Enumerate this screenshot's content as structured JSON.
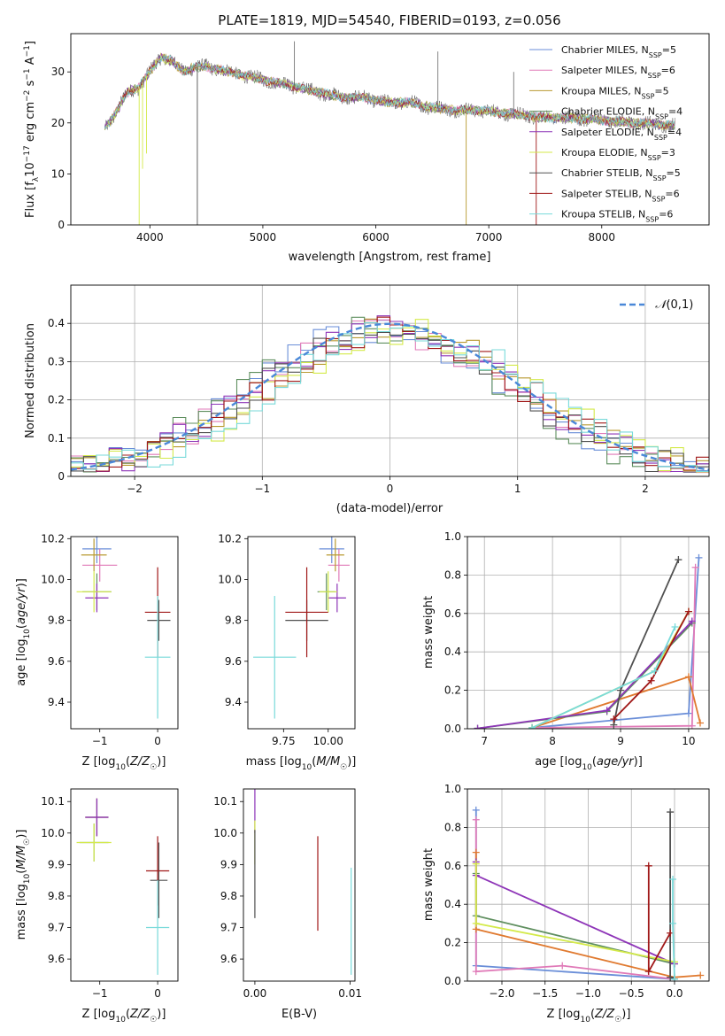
{
  "figure_title": "PLATE=1819, MJD=54540, FIBERID=0193, z=0.056",
  "colors": {
    "chabrier_miles": "#6a8ed8",
    "salpeter_miles": "#e07ab8",
    "kroupa_miles": "#b89a30",
    "chabrier_elodie": "#5f8f5f",
    "salpeter_elodie": "#8e35b8",
    "kroupa_elodie": "#d4ea4a",
    "chabrier_stelib": "#505050",
    "salpeter_stelib": "#a01818",
    "kroupa_stelib": "#78dada",
    "orange": "#e07a30"
  },
  "chart_data": [
    {
      "id": "spectrum",
      "type": "line",
      "xlabel": "wavelength [Angstrom, rest frame]",
      "ylabel": "Flux [fλ10^-17 erg cm^-2 s^-1 A^-1]",
      "xlim": [
        3300,
        8950
      ],
      "ylim": [
        0,
        37.5
      ],
      "xticks": [
        4000,
        5000,
        6000,
        7000,
        8000
      ],
      "yticks": [
        0,
        10,
        20,
        30
      ],
      "legend_position": "upper-right",
      "legend": [
        "Chabrier MILES, N_SSP=5",
        "Salpeter MILES, N_SSP=6",
        "Kroupa MILES, N_SSP=5",
        "Chabrier ELODIE, N_SSP=4",
        "Salpeter ELODIE, N_SSP=4",
        "Kroupa ELODIE, N_SSP=3",
        "Chabrier STELIB, N_SSP=5",
        "Salpeter STELIB, N_SSP=6",
        "Kroupa STELIB, N_SSP=6"
      ],
      "continuum": {
        "x": [
          3600,
          3700,
          3800,
          3900,
          4000,
          4100,
          4200,
          4300,
          4400,
          4500,
          4700,
          4900,
          5100,
          5300,
          5500,
          5700,
          5900,
          6100,
          6300,
          6500,
          6700,
          6900,
          7100,
          7300,
          7500,
          7700,
          8000,
          8300,
          8650
        ],
        "y": [
          19,
          22,
          26,
          27,
          30,
          33,
          32,
          30,
          31,
          31,
          30,
          29,
          28,
          27,
          26,
          25,
          25,
          24,
          24,
          23,
          22.5,
          22.5,
          22,
          21.5,
          21,
          21,
          20.5,
          20,
          19.5
        ]
      },
      "dips": [
        {
          "x": 3905,
          "y": 0,
          "series": "kroupa_elodie"
        },
        {
          "x": 3935,
          "y": 11,
          "series": "kroupa_elodie"
        },
        {
          "x": 3970,
          "y": 14,
          "series": "kroupa_elodie"
        },
        {
          "x": 4420,
          "y": 0,
          "series": "chabrier_stelib"
        },
        {
          "x": 6800,
          "y": 0,
          "series": "kroupa_miles"
        },
        {
          "x": 7420,
          "y": 0,
          "series": "salpeter_stelib"
        }
      ],
      "spikes": [
        {
          "x": 5280,
          "y": 36,
          "series": "chabrier_stelib"
        },
        {
          "x": 6550,
          "y": 34,
          "series": "chabrier_stelib"
        },
        {
          "x": 7220,
          "y": 30,
          "series": "chabrier_stelib"
        }
      ]
    },
    {
      "id": "residual-histogram",
      "type": "line",
      "step": true,
      "xlabel": "(data-model)/error",
      "ylabel": "Normed distribution",
      "xlim": [
        -2.5,
        2.5
      ],
      "ylim": [
        0,
        0.5
      ],
      "xticks": [
        -2,
        -1,
        0,
        1,
        2
      ],
      "yticks": [
        0.0,
        0.1,
        0.2,
        0.3,
        0.4
      ],
      "grid": true,
      "legend_position": "upper-right",
      "legend": [
        "𝒩(0,1)"
      ],
      "reference_curve": {
        "name": "𝒩(0,1)",
        "mu": 0,
        "sigma": 1,
        "style": "dashed"
      }
    },
    {
      "id": "age-vs-Z",
      "type": "scatter",
      "error_bars": true,
      "xlabel": "Z [log10(Z/Z☉)]",
      "ylabel": "age [log10(age/yr)]",
      "xlim": [
        -1.5,
        0.35
      ],
      "ylim": [
        9.27,
        10.21
      ],
      "xticks": [
        -1,
        0
      ],
      "yticks": [
        9.4,
        9.6,
        9.8,
        10.0,
        10.2
      ],
      "points": [
        {
          "series": "chabrier_miles",
          "x": -1.05,
          "y": 10.15,
          "xe": 0.25,
          "ye": 0.07
        },
        {
          "series": "salpeter_miles",
          "x": -1.0,
          "y": 10.07,
          "xe": 0.3,
          "ye": 0.08
        },
        {
          "series": "kroupa_miles",
          "x": -1.1,
          "y": 10.12,
          "xe": 0.22,
          "ye": 0.08
        },
        {
          "series": "chabrier_elodie",
          "x": -1.05,
          "y": 9.94,
          "xe": 0.25,
          "ye": 0.09
        },
        {
          "series": "salpeter_elodie",
          "x": -1.05,
          "y": 9.91,
          "xe": 0.2,
          "ye": 0.07
        },
        {
          "series": "kroupa_elodie",
          "x": -1.1,
          "y": 9.94,
          "xe": 0.3,
          "ye": 0.1
        },
        {
          "series": "chabrier_stelib",
          "x": 0.02,
          "y": 9.8,
          "xe": 0.2,
          "ye": 0.1
        },
        {
          "series": "salpeter_stelib",
          "x": 0.0,
          "y": 9.84,
          "xe": 0.22,
          "ye": 0.22
        },
        {
          "series": "kroupa_stelib",
          "x": 0.0,
          "y": 9.62,
          "xe": 0.22,
          "ye": 0.3
        }
      ]
    },
    {
      "id": "age-vs-mass",
      "type": "scatter",
      "error_bars": true,
      "xlabel": "mass [log10(M/M☉)]",
      "ylabel": "",
      "xlim": [
        9.55,
        10.15
      ],
      "ylim": [
        9.27,
        10.21
      ],
      "xticks": [
        9.75,
        10.0
      ],
      "yticks": [
        9.4,
        9.6,
        9.8,
        10.0,
        10.2
      ],
      "points": [
        {
          "series": "chabrier_miles",
          "x": 10.02,
          "y": 10.15,
          "xe": 0.07,
          "ye": 0.07
        },
        {
          "series": "salpeter_miles",
          "x": 10.06,
          "y": 10.07,
          "xe": 0.06,
          "ye": 0.08
        },
        {
          "series": "kroupa_miles",
          "x": 10.04,
          "y": 10.12,
          "xe": 0.05,
          "ye": 0.08
        },
        {
          "series": "chabrier_elodie",
          "x": 9.99,
          "y": 9.94,
          "xe": 0.05,
          "ye": 0.09
        },
        {
          "series": "salpeter_elodie",
          "x": 10.05,
          "y": 9.91,
          "xe": 0.05,
          "ye": 0.07
        },
        {
          "series": "kroupa_elodie",
          "x": 10.0,
          "y": 9.94,
          "xe": 0.05,
          "ye": 0.1
        },
        {
          "series": "chabrier_stelib",
          "x": 9.88,
          "y": 9.8,
          "xe": 0.12,
          "ye": 0.1
        },
        {
          "series": "salpeter_stelib",
          "x": 9.88,
          "y": 9.84,
          "xe": 0.12,
          "ye": 0.22
        },
        {
          "series": "kroupa_stelib",
          "x": 9.7,
          "y": 9.62,
          "xe": 0.12,
          "ye": 0.3
        }
      ]
    },
    {
      "id": "massweight-vs-age",
      "type": "line",
      "xlabel": "age [log10(age/yr)]",
      "ylabel": "mass weight",
      "xlim": [
        6.75,
        10.3
      ],
      "ylim": [
        0,
        1.0
      ],
      "xticks": [
        7,
        8,
        9,
        10
      ],
      "yticks": [
        0.0,
        0.2,
        0.4,
        0.6,
        0.8,
        1.0
      ],
      "grid": true,
      "series": [
        {
          "name": "chabrier_miles",
          "x": [
            7.7,
            10.0,
            10.15
          ],
          "y": [
            0.005,
            0.08,
            0.89
          ]
        },
        {
          "name": "salpeter_miles",
          "x": [
            7.7,
            10.05,
            10.1
          ],
          "y": [
            0.005,
            0.015,
            0.84
          ]
        },
        {
          "name": "orange",
          "x": [
            7.7,
            10.0,
            10.17
          ],
          "y": [
            0.005,
            0.27,
            0.03
          ]
        },
        {
          "name": "chabrier_elodie",
          "x": [
            6.9,
            8.8,
            10.05
          ],
          "y": [
            0.002,
            0.09,
            0.55
          ]
        },
        {
          "name": "salpeter_elodie",
          "x": [
            6.9,
            8.8,
            10.05
          ],
          "y": [
            0.002,
            0.095,
            0.56
          ]
        },
        {
          "name": "kroupa_elodie",
          "x": [
            7.7,
            9.5,
            10.0
          ],
          "y": [
            0.005,
            0.3,
            0.61
          ]
        },
        {
          "name": "chabrier_stelib",
          "x": [
            8.9,
            9.0,
            9.85
          ],
          "y": [
            0.02,
            0.2,
            0.88
          ]
        },
        {
          "name": "salpeter_stelib",
          "x": [
            8.9,
            9.45,
            10.0
          ],
          "y": [
            0.05,
            0.25,
            0.61
          ]
        },
        {
          "name": "kroupa_stelib",
          "x": [
            7.7,
            9.5,
            9.8
          ],
          "y": [
            0.005,
            0.3,
            0.53
          ]
        }
      ]
    },
    {
      "id": "mass-vs-Z",
      "type": "scatter",
      "error_bars": true,
      "xlabel": "Z [log10(Z/Z☉)]",
      "ylabel": "mass [log10(M/M☉)]",
      "xlim": [
        -1.5,
        0.35
      ],
      "ylim": [
        9.53,
        10.14
      ],
      "xticks": [
        -1,
        0
      ],
      "yticks": [
        9.6,
        9.7,
        9.8,
        9.9,
        10.0,
        10.1
      ],
      "points": [
        {
          "series": "chabrier_miles",
          "x": -1.05,
          "y": 10.05,
          "xe": 0.2,
          "ye": 0.06
        },
        {
          "series": "salpeter_miles",
          "x": -1.05,
          "y": 10.05,
          "xe": 0.2,
          "ye": 0.06
        },
        {
          "series": "kroupa_miles",
          "x": -1.05,
          "y": 10.05,
          "xe": 0.2,
          "ye": 0.06
        },
        {
          "series": "chabrier_elodie",
          "x": -1.1,
          "y": 9.97,
          "xe": 0.25,
          "ye": 0.06
        },
        {
          "series": "salpeter_elodie",
          "x": -1.05,
          "y": 10.05,
          "xe": 0.2,
          "ye": 0.06
        },
        {
          "series": "kroupa_elodie",
          "x": -1.1,
          "y": 9.97,
          "xe": 0.3,
          "ye": 0.06
        },
        {
          "series": "chabrier_stelib",
          "x": 0.02,
          "y": 9.85,
          "xe": 0.15,
          "ye": 0.12
        },
        {
          "series": "salpeter_stelib",
          "x": 0.0,
          "y": 9.88,
          "xe": 0.2,
          "ye": 0.11
        },
        {
          "series": "kroupa_stelib",
          "x": 0.0,
          "y": 9.7,
          "xe": 0.2,
          "ye": 0.15
        }
      ]
    },
    {
      "id": "mass-vs-ebv",
      "type": "scatter",
      "error_bars": true,
      "xlabel": "E(B-V)",
      "ylabel": "",
      "xlim": [
        -0.0012,
        0.0105
      ],
      "ylim": [
        9.53,
        10.14
      ],
      "xticks": [
        0.0,
        0.01
      ],
      "xtick_labels": [
        "0.00",
        "0.01"
      ],
      "yticks": [
        9.6,
        9.7,
        9.8,
        9.9,
        10.0,
        10.1
      ],
      "points": [
        {
          "series": "salpeter_elodie",
          "x": 0.0,
          "y": 10.07,
          "xe": 0,
          "ye": 0.07
        },
        {
          "series": "kroupa_elodie",
          "x": 0.0,
          "y": 9.97,
          "xe": 0,
          "ye": 0.07
        },
        {
          "series": "chabrier_stelib",
          "x": 0.0,
          "y": 9.87,
          "xe": 0,
          "ye": 0.14
        },
        {
          "series": "salpeter_stelib",
          "x": 0.0066,
          "y": 9.84,
          "xe": 0,
          "ye": 0.15
        },
        {
          "series": "kroupa_stelib",
          "x": 0.0101,
          "y": 9.72,
          "xe": 0,
          "ye": 0.17
        }
      ]
    },
    {
      "id": "massweight-vs-Z",
      "type": "line",
      "xlabel": "Z [log10(Z/Z☉)]",
      "ylabel": "mass weight",
      "xlim": [
        -2.4,
        0.4
      ],
      "ylim": [
        0,
        1.0
      ],
      "xticks": [
        -2.0,
        -1.5,
        -1.0,
        -0.5,
        0.0
      ],
      "yticks": [
        0.0,
        0.2,
        0.4,
        0.6,
        0.8,
        1.0
      ],
      "grid": true,
      "series": [
        {
          "name": "chabrier_miles",
          "x": [
            -2.3,
            -2.3,
            0.0
          ],
          "y": [
            0.89,
            0.08,
            0.01
          ]
        },
        {
          "name": "salpeter_miles",
          "x": [
            -2.3,
            -2.3,
            -1.3,
            0.0
          ],
          "y": [
            0.84,
            0.05,
            0.08,
            0.01
          ]
        },
        {
          "name": "orange",
          "x": [
            -2.3,
            -2.3,
            0.0,
            0.3
          ],
          "y": [
            0.67,
            0.27,
            0.02,
            0.03
          ]
        },
        {
          "name": "chabrier_elodie",
          "x": [
            -2.3,
            -2.3,
            0.0
          ],
          "y": [
            0.56,
            0.34,
            0.09
          ]
        },
        {
          "name": "salpeter_elodie",
          "x": [
            -2.3,
            -2.3,
            0.0
          ],
          "y": [
            0.62,
            0.55,
            0.09
          ]
        },
        {
          "name": "kroupa_elodie",
          "x": [
            -2.3,
            -2.3,
            0.0
          ],
          "y": [
            0.61,
            0.3,
            0.1
          ]
        },
        {
          "name": "chabrier_stelib",
          "x": [
            -0.05,
            -0.05,
            0.0
          ],
          "y": [
            0.88,
            0.02,
            0.01
          ]
        },
        {
          "name": "salpeter_stelib",
          "x": [
            -0.3,
            -0.3,
            -0.05
          ],
          "y": [
            0.6,
            0.05,
            0.25
          ]
        },
        {
          "name": "kroupa_stelib",
          "x": [
            -0.02,
            -0.02,
            0.0
          ],
          "y": [
            0.53,
            0.3,
            0.01
          ]
        }
      ]
    }
  ]
}
